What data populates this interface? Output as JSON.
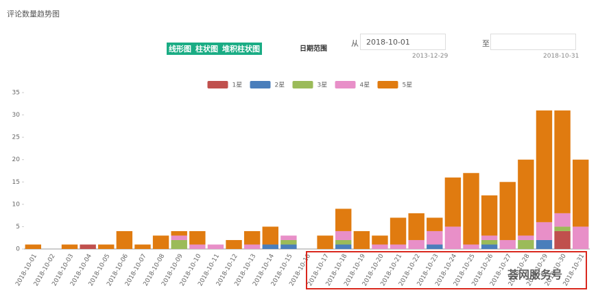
{
  "page": {
    "title": "评论数量趋势图",
    "buttons": [
      "线形图",
      "柱状图",
      "堆积柱状图"
    ],
    "date_range_label": "日期范围",
    "from_label": "从",
    "from_value": "2018-10-01",
    "from_hint": "2013-12-29",
    "to_label": "至",
    "to_hint": "2018-10-31",
    "watermark": "荟网服务号"
  },
  "chart_data": {
    "type": "stacked_bar",
    "categories": [
      "2018-10-01",
      "2018-10-02",
      "2018-10-03",
      "2018-10-04",
      "2018-10-05",
      "2018-10-06",
      "2018-10-07",
      "2018-10-08",
      "2018-10-09",
      "2018-10-10",
      "2018-10-11",
      "2018-10-12",
      "2018-10-13",
      "2018-10-14",
      "2018-10-15",
      "2018-10-16",
      "2018-10-17",
      "2018-10-18",
      "2018-10-19",
      "2018-10-20",
      "2018-10-21",
      "2018-10-22",
      "2018-10-23",
      "2018-10-24",
      "2018-10-25",
      "2018-10-26",
      "2018-10-27",
      "2018-10-28",
      "2018-10-29",
      "2018-10-30",
      "2018-10-31"
    ],
    "series": [
      {
        "name": "1星",
        "color": "#c0504d",
        "values": [
          0,
          0,
          0,
          1,
          0,
          0,
          0,
          0,
          0,
          0,
          0,
          0,
          0,
          0,
          0,
          0,
          0,
          0,
          0,
          0,
          0,
          0,
          0,
          0,
          0,
          0,
          0,
          0,
          0,
          4,
          0
        ]
      },
      {
        "name": "2星",
        "color": "#4a7ebb",
        "values": [
          0,
          0,
          0,
          0,
          0,
          0,
          0,
          0,
          0,
          0,
          0,
          0,
          0,
          1,
          1,
          0,
          0,
          1,
          0,
          0,
          0,
          0,
          1,
          0,
          0,
          1,
          0,
          0,
          2,
          0,
          0
        ]
      },
      {
        "name": "3星",
        "color": "#9bbb59",
        "values": [
          0,
          0,
          0,
          0,
          0,
          0,
          0,
          0,
          2,
          0,
          0,
          0,
          0,
          0,
          1,
          0,
          0,
          1,
          0,
          0,
          0,
          0,
          0,
          0,
          0,
          1,
          0,
          2,
          0,
          1,
          0
        ]
      },
      {
        "name": "4星",
        "color": "#e88fc8",
        "values": [
          0,
          0,
          0,
          0,
          0,
          0,
          0,
          0,
          1,
          1,
          1,
          0,
          1,
          0,
          1,
          0,
          0,
          2,
          0,
          1,
          1,
          2,
          3,
          5,
          1,
          1,
          2,
          1,
          4,
          3,
          5
        ]
      },
      {
        "name": "5星",
        "color": "#e07b10",
        "values": [
          1,
          0,
          1,
          0,
          1,
          4,
          1,
          3,
          1,
          3,
          0,
          2,
          3,
          4,
          0,
          0,
          3,
          5,
          4,
          2,
          6,
          6,
          3,
          11,
          16,
          9,
          13,
          17,
          25,
          23,
          15
        ]
      }
    ],
    "ylim": [
      0,
      35
    ],
    "yticks": [
      0,
      5,
      10,
      15,
      20,
      25,
      30,
      35
    ],
    "grid": false,
    "legend": "top"
  }
}
